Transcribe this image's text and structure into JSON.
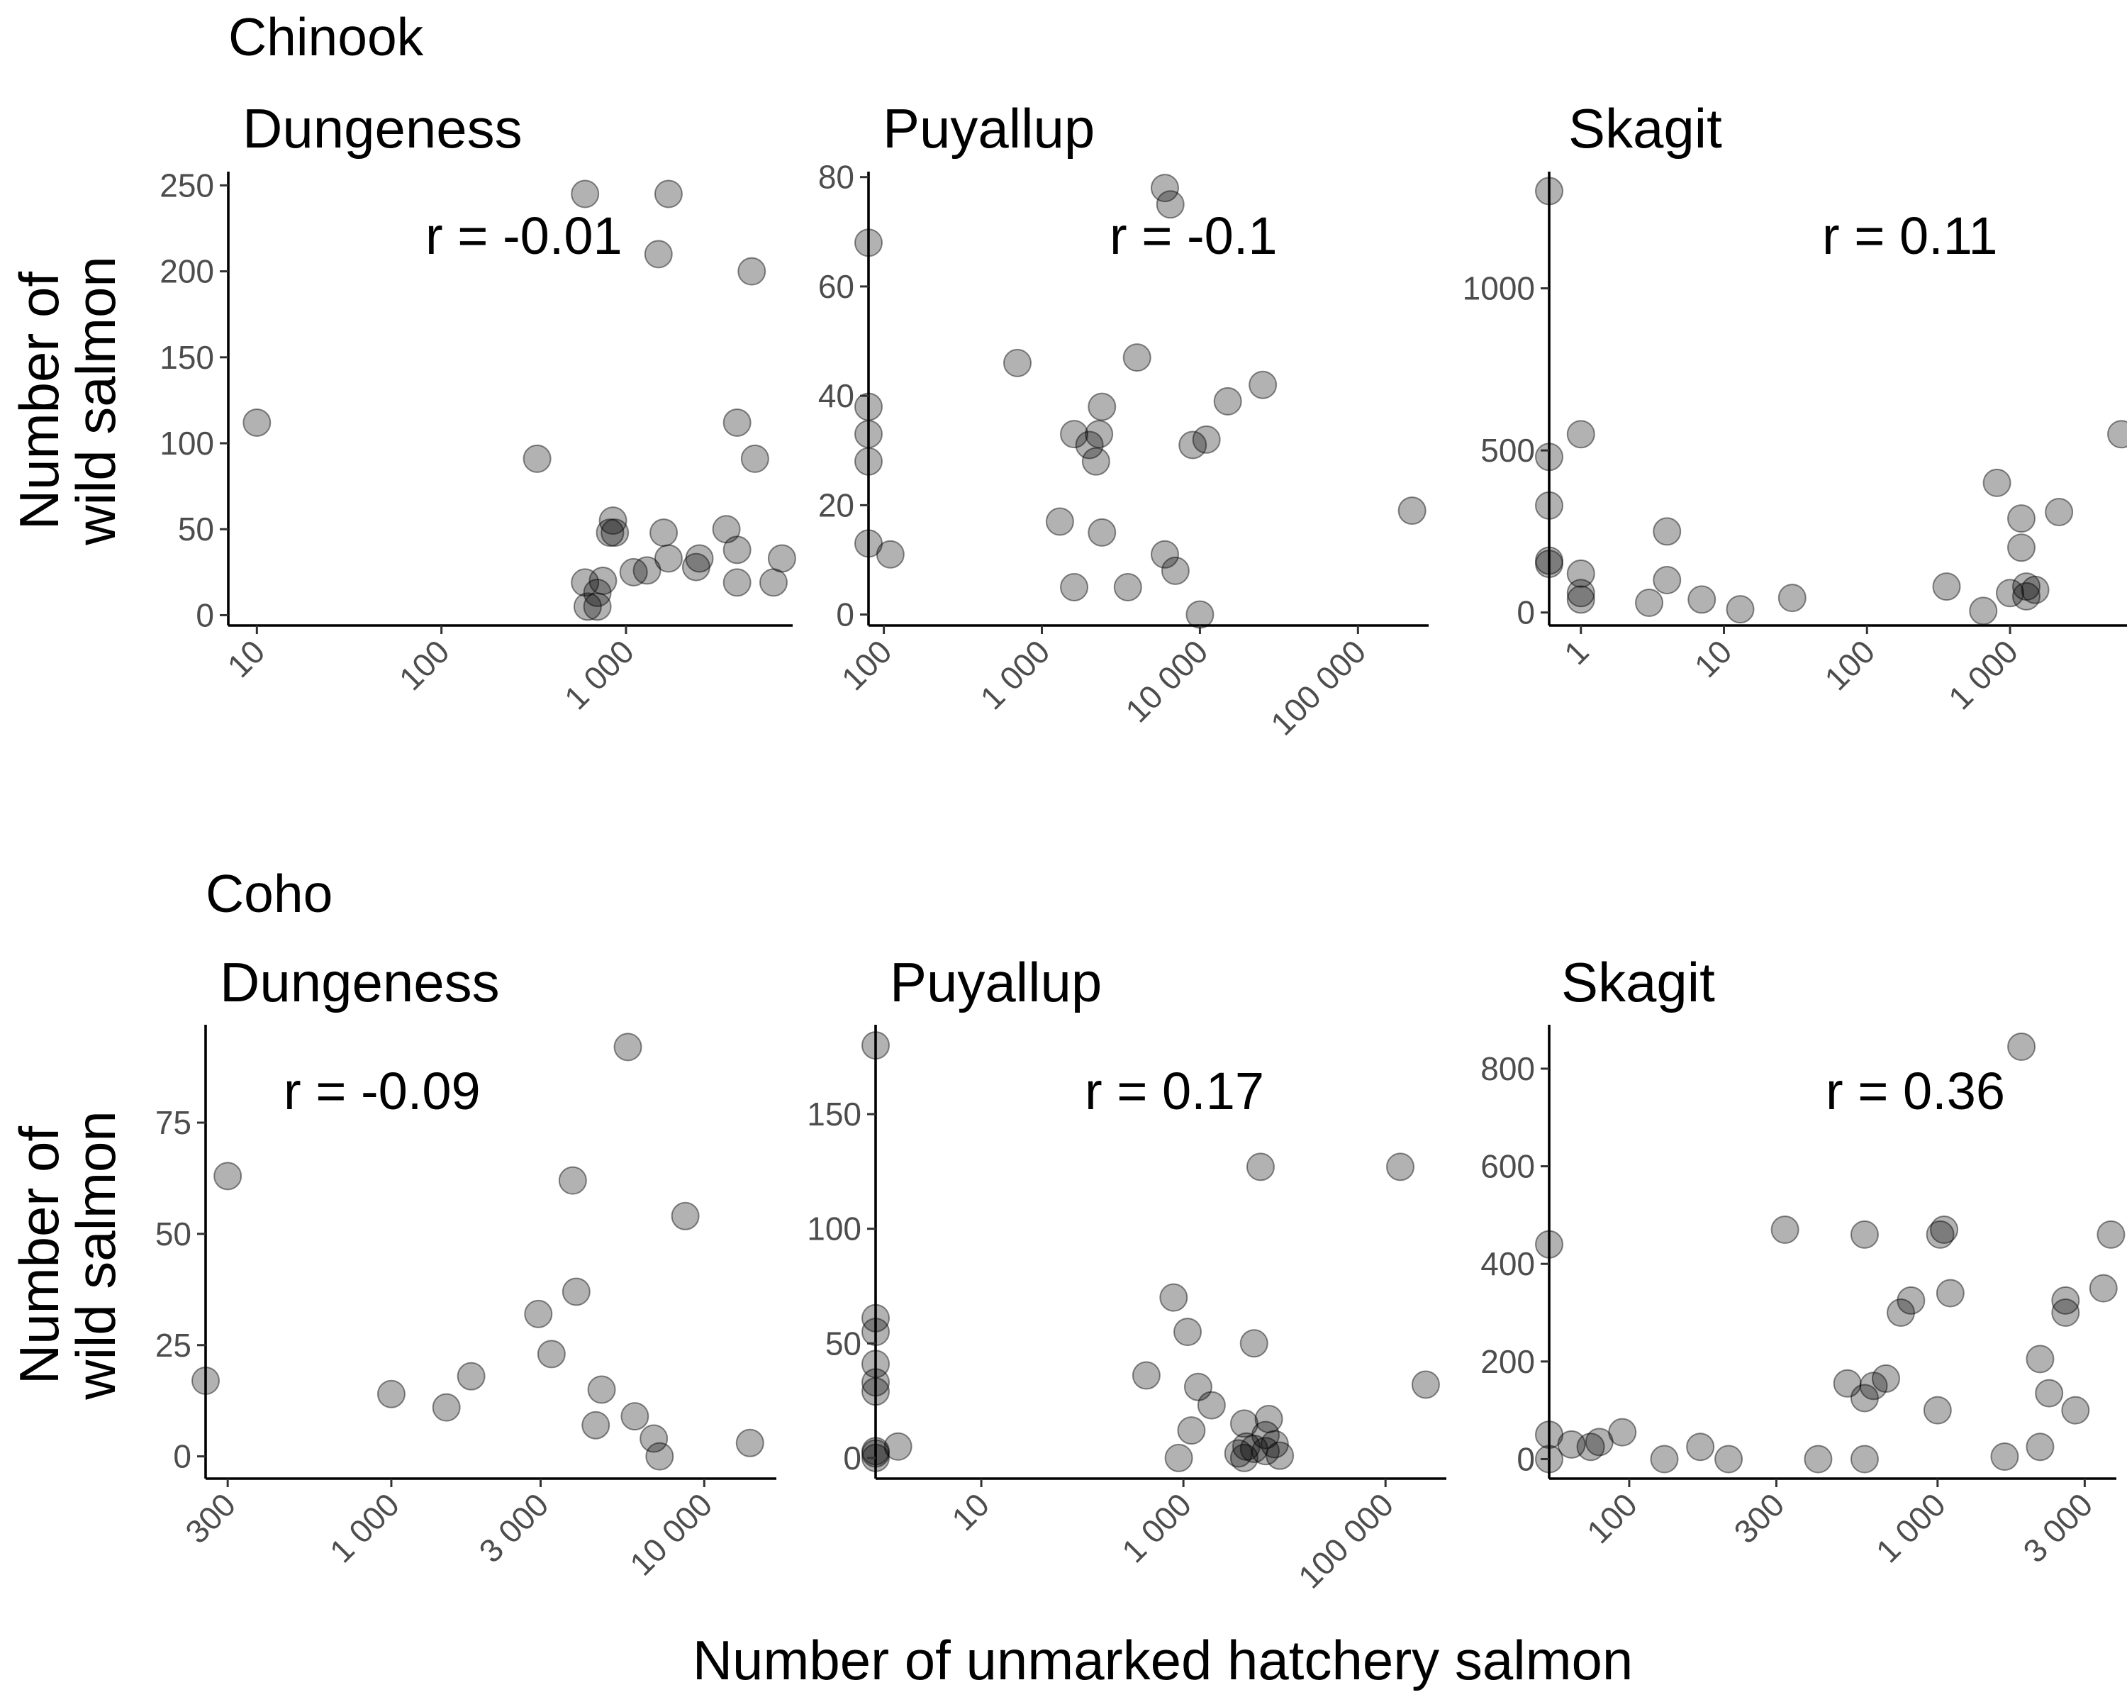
{
  "figure": {
    "xlabel": "Number of unmarked hatchery salmon",
    "ylabel_line1": "Number of",
    "ylabel_line2": "wild salmon",
    "groups": [
      {
        "title": "Chinook"
      },
      {
        "title": "Coho"
      }
    ]
  },
  "chart_data": [
    {
      "type": "scatter",
      "group": "Chinook",
      "title": "Dungeness",
      "annotation": "r = -0.01",
      "xscale": "log10",
      "xlim": [
        7,
        8000
      ],
      "ylim": [
        -6,
        258
      ],
      "xticks": [
        10,
        100,
        1000
      ],
      "xtick_labels": [
        "10",
        "100",
        "1 000"
      ],
      "yticks": [
        0,
        50,
        100,
        150,
        200,
        250
      ],
      "ytick_labels": [
        "0",
        "50",
        "100",
        "150",
        "200",
        "250"
      ],
      "points": [
        [
          10,
          112
        ],
        [
          330,
          91
        ],
        [
          600,
          245
        ],
        [
          1700,
          245
        ],
        [
          1500,
          210
        ],
        [
          4800,
          200
        ],
        [
          4000,
          112
        ],
        [
          5000,
          91
        ],
        [
          850,
          55
        ],
        [
          820,
          48
        ],
        [
          870,
          48
        ],
        [
          1600,
          48
        ],
        [
          3500,
          50
        ],
        [
          4000,
          38
        ],
        [
          1700,
          33
        ],
        [
          2500,
          33
        ],
        [
          7000,
          33
        ],
        [
          2400,
          28
        ],
        [
          1100,
          25
        ],
        [
          1300,
          26
        ],
        [
          750,
          20
        ],
        [
          600,
          19
        ],
        [
          4000,
          19
        ],
        [
          6300,
          19
        ],
        [
          700,
          13
        ],
        [
          620,
          5
        ],
        [
          700,
          5
        ]
      ]
    },
    {
      "type": "scatter",
      "group": "Chinook",
      "title": "Puyallup",
      "annotation": "r = -0.1",
      "xscale": "log10",
      "xlim": [
        80,
        280000
      ],
      "ylim": [
        -2,
        81
      ],
      "xticks": [
        100,
        1000,
        10000,
        100000
      ],
      "xtick_labels": [
        "100",
        "1 000",
        "10 000",
        "100 000"
      ],
      "yticks": [
        0,
        20,
        40,
        60,
        80
      ],
      "ytick_labels": [
        "0",
        "20",
        "40",
        "60",
        "80"
      ],
      "points": [
        [
          6000,
          78
        ],
        [
          6500,
          75
        ],
        [
          80,
          68
        ],
        [
          4000,
          47
        ],
        [
          700,
          46
        ],
        [
          25000,
          42
        ],
        [
          80,
          38
        ],
        [
          2400,
          38
        ],
        [
          15000,
          39
        ],
        [
          80,
          33
        ],
        [
          1600,
          33
        ],
        [
          2300,
          33
        ],
        [
          11000,
          32
        ],
        [
          2000,
          31
        ],
        [
          9000,
          31
        ],
        [
          80,
          28
        ],
        [
          2200,
          28
        ],
        [
          1300,
          17
        ],
        [
          2400,
          15
        ],
        [
          80,
          13
        ],
        [
          110,
          11
        ],
        [
          6000,
          11
        ],
        [
          7000,
          8
        ],
        [
          1600,
          5
        ],
        [
          3500,
          5
        ],
        [
          10000,
          0
        ],
        [
          220000,
          19
        ]
      ]
    },
    {
      "type": "scatter",
      "group": "Chinook",
      "title": "Skagit",
      "annotation": "r = 0.11",
      "xscale": "log10",
      "xlim": [
        0.6,
        7200
      ],
      "ylim": [
        -40,
        1360
      ],
      "xticks": [
        1,
        10,
        100,
        1000
      ],
      "xtick_labels": [
        "1",
        "10",
        "100",
        "1 000"
      ],
      "yticks": [
        0,
        500,
        1000
      ],
      "ytick_labels": [
        "0",
        "500",
        "1000"
      ],
      "points": [
        [
          0.6,
          1300
        ],
        [
          0.6,
          480
        ],
        [
          0.6,
          330
        ],
        [
          0.6,
          160
        ],
        [
          0.6,
          150
        ],
        [
          1,
          550
        ],
        [
          1,
          120
        ],
        [
          1,
          60
        ],
        [
          1,
          40
        ],
        [
          4,
          250
        ],
        [
          4,
          100
        ],
        [
          3,
          30
        ],
        [
          7,
          40
        ],
        [
          13,
          10
        ],
        [
          30,
          45
        ],
        [
          360,
          80
        ],
        [
          810,
          400
        ],
        [
          1200,
          290
        ],
        [
          1200,
          200
        ],
        [
          2200,
          310
        ],
        [
          6000,
          550
        ],
        [
          1300,
          80
        ],
        [
          1500,
          70
        ],
        [
          1000,
          60
        ],
        [
          1300,
          50
        ],
        [
          650,
          5
        ]
      ]
    },
    {
      "type": "scatter",
      "group": "Coho",
      "title": "Dungeness",
      "annotation": "r = -0.09",
      "xscale": "log10",
      "xlim": [
        255,
        17000
      ],
      "ylim": [
        -5,
        97
      ],
      "xticks": [
        300,
        1000,
        3000,
        10000
      ],
      "xtick_labels": [
        "300",
        "1 000",
        "3 000",
        "10 000"
      ],
      "yticks": [
        0,
        25,
        50,
        75
      ],
      "ytick_labels": [
        "0",
        "25",
        "50",
        "75"
      ],
      "points": [
        [
          255,
          17
        ],
        [
          300,
          63
        ],
        [
          1000,
          14
        ],
        [
          1500,
          11
        ],
        [
          1800,
          18
        ],
        [
          2950,
          32
        ],
        [
          3250,
          23
        ],
        [
          3800,
          62
        ],
        [
          3900,
          37
        ],
        [
          4500,
          7
        ],
        [
          4700,
          15
        ],
        [
          5700,
          92
        ],
        [
          6000,
          9
        ],
        [
          6900,
          4
        ],
        [
          7200,
          0
        ],
        [
          8700,
          54
        ],
        [
          14000,
          3
        ]
      ]
    },
    {
      "type": "scatter",
      "group": "Coho",
      "title": "Puyallup",
      "annotation": "r = 0.17",
      "xscale": "log10",
      "xlim": [
        0.9,
        400000
      ],
      "ylim": [
        -9,
        189
      ],
      "xticks": [
        10,
        1000,
        100000
      ],
      "xtick_labels": [
        "10",
        "1 000",
        "100 000"
      ],
      "yticks": [
        0,
        50,
        100,
        150
      ],
      "ytick_labels": [
        "0",
        "50",
        "100",
        "150"
      ],
      "points": [
        [
          0.9,
          180
        ],
        [
          0.9,
          61
        ],
        [
          0.9,
          55
        ],
        [
          0.9,
          41
        ],
        [
          0.9,
          33
        ],
        [
          0.9,
          29
        ],
        [
          0.9,
          3
        ],
        [
          0.9,
          2
        ],
        [
          0.9,
          0
        ],
        [
          1.5,
          5
        ],
        [
          430,
          36
        ],
        [
          800,
          70
        ],
        [
          1100,
          55
        ],
        [
          1400,
          31
        ],
        [
          1900,
          23
        ],
        [
          1200,
          12
        ],
        [
          900,
          0
        ],
        [
          5800,
          127
        ],
        [
          140000,
          127
        ],
        [
          5000,
          50
        ],
        [
          4000,
          15
        ],
        [
          7000,
          17
        ],
        [
          6500,
          10
        ],
        [
          8000,
          6
        ],
        [
          4200,
          5
        ],
        [
          5000,
          4
        ],
        [
          6500,
          3
        ],
        [
          3500,
          2
        ],
        [
          4000,
          0
        ],
        [
          9000,
          1
        ],
        [
          250000,
          32
        ]
      ]
    },
    {
      "type": "scatter",
      "group": "Coho",
      "title": "Skagit",
      "annotation": "r = 0.36",
      "xscale": "log10",
      "xlim": [
        55,
        3800
      ],
      "ylim": [
        -40,
        890
      ],
      "xticks": [
        100,
        300,
        1000,
        3000
      ],
      "xtick_labels": [
        "100",
        "300",
        "1 000",
        "3 000"
      ],
      "yticks": [
        0,
        200,
        400,
        600,
        800
      ],
      "ytick_labels": [
        "0",
        "200",
        "400",
        "600",
        "800"
      ],
      "points": [
        [
          55,
          440
        ],
        [
          55,
          50
        ],
        [
          55,
          0
        ],
        [
          65,
          30
        ],
        [
          75,
          25
        ],
        [
          80,
          35
        ],
        [
          95,
          55
        ],
        [
          130,
          0
        ],
        [
          170,
          25
        ],
        [
          210,
          0
        ],
        [
          320,
          470
        ],
        [
          410,
          0
        ],
        [
          510,
          155
        ],
        [
          580,
          460
        ],
        [
          580,
          125
        ],
        [
          580,
          0
        ],
        [
          620,
          150
        ],
        [
          680,
          165
        ],
        [
          760,
          300
        ],
        [
          820,
          325
        ],
        [
          1020,
          460
        ],
        [
          1050,
          470
        ],
        [
          1100,
          340
        ],
        [
          1000,
          100
        ],
        [
          1650,
          5
        ],
        [
          1870,
          845
        ],
        [
          2150,
          205
        ],
        [
          2150,
          25
        ],
        [
          2300,
          135
        ],
        [
          2600,
          325
        ],
        [
          2600,
          300
        ],
        [
          2800,
          100
        ],
        [
          3450,
          350
        ],
        [
          3650,
          460
        ]
      ]
    }
  ]
}
